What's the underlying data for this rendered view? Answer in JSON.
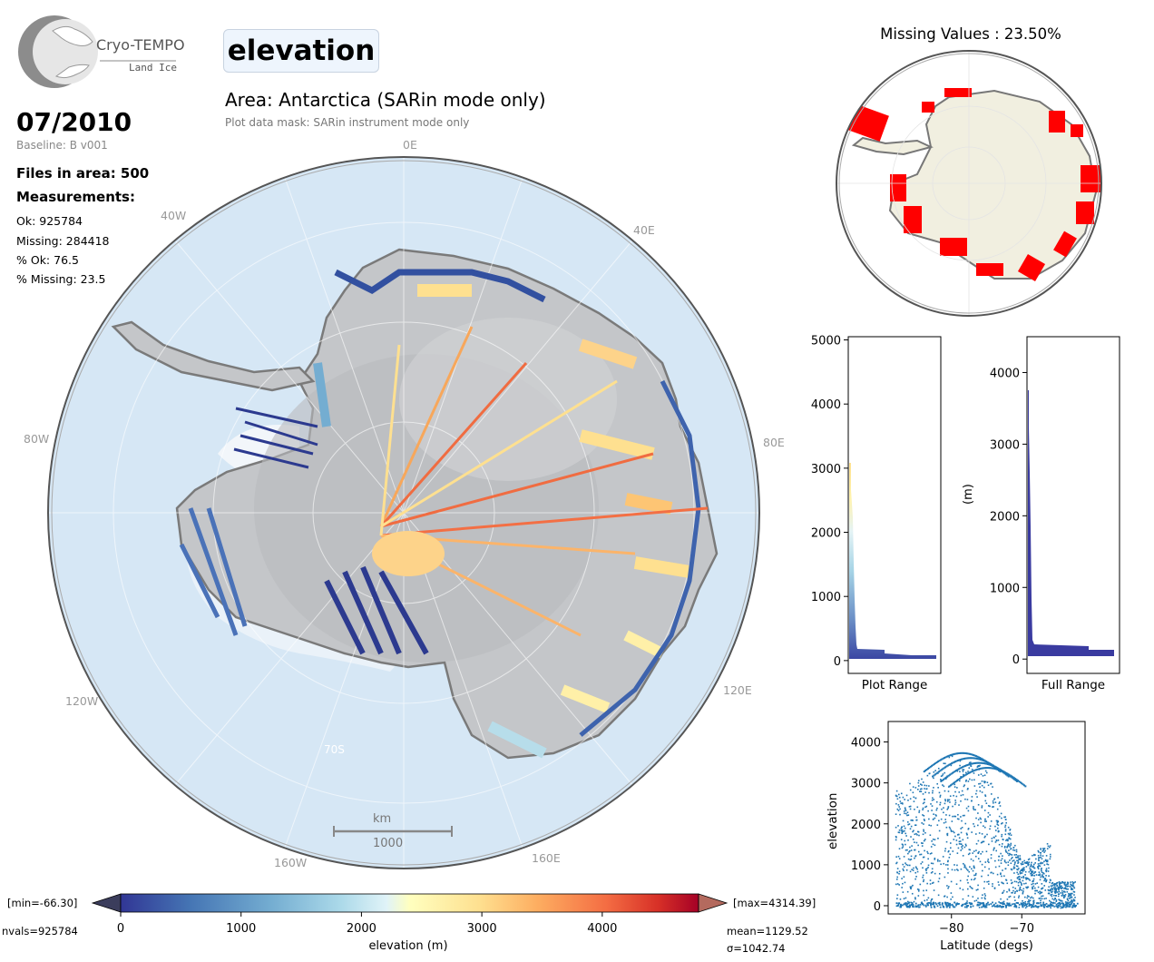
{
  "logo": {
    "name": "Cryo-TEMPO",
    "sub": "Land Ice"
  },
  "header": {
    "parameter": "elevation",
    "area": "Area: Antarctica (SARin mode only)",
    "mask": "Plot data mask: SARin instrument mode only"
  },
  "info": {
    "date": "07/2010",
    "baseline": "Baseline: B v001",
    "files": "Files in area: 500",
    "measurements_label": "Measurements:",
    "ok": "Ok: 925784",
    "missing": "Missing: 284418",
    "pct_ok": "% Ok: 76.5",
    "pct_missing": "% Missing: 23.5"
  },
  "map": {
    "lon_labels": {
      "l0": "0E",
      "l40w": "40W",
      "l40e": "40E",
      "l80w": "80W",
      "l80e": "80E",
      "l120w": "120W",
      "l120e": "120E",
      "l160w": "160W",
      "l160e": "160E"
    },
    "lat_label": "70S",
    "scalebar_unit": "km",
    "scalebar_value": "1000",
    "colors": {
      "ocean": "#d6e7f5",
      "ice": "#c4c6c9",
      "coast": "#7a7a7a"
    }
  },
  "colorbar": {
    "min_label": "[min=-66.30]",
    "max_label": "[max=4314.39]",
    "nvals": "nvals=925784",
    "mean": "mean=1129.52",
    "sigma": "σ=1042.74",
    "ticks": [
      "0",
      "1000",
      "2000",
      "3000",
      "4000"
    ],
    "tick_values": [
      0,
      1000,
      2000,
      3000,
      4000
    ],
    "range": [
      0,
      4800
    ],
    "label": "elevation (m)"
  },
  "missing_map": {
    "title": "Missing Values : 23.50%",
    "missing_color": "#ff0000",
    "land_color": "#f1efe0"
  },
  "hist_plot": {
    "xlabel": "Plot Range",
    "ticks": [
      "0",
      "1000",
      "2000",
      "3000",
      "4000",
      "5000"
    ],
    "tick_values": [
      0,
      1000,
      2000,
      3000,
      4000,
      5000
    ],
    "ylim": [
      -200,
      5050
    ]
  },
  "hist_full": {
    "xlabel": "Full Range",
    "ylabel": "(m)",
    "ticks": [
      "0",
      "1000",
      "2000",
      "3000",
      "4000"
    ],
    "tick_values": [
      0,
      1000,
      2000,
      3000,
      4000
    ],
    "ylim": [
      -200,
      4500
    ],
    "color": "#3a3ba0"
  },
  "chart_data": {
    "type": "scatter",
    "xlabel": "Latitude (degs)",
    "ylabel": "elevation",
    "xlim": [
      -89,
      -61
    ],
    "ylim": [
      -200,
      4500
    ],
    "xticks": [
      "−80",
      "−70"
    ],
    "xtick_values": [
      -80,
      -70
    ],
    "yticks": [
      "0",
      "1000",
      "2000",
      "3000",
      "4000"
    ],
    "ytick_values": [
      0,
      1000,
      2000,
      3000,
      4000
    ],
    "color": "#1f77b4"
  }
}
